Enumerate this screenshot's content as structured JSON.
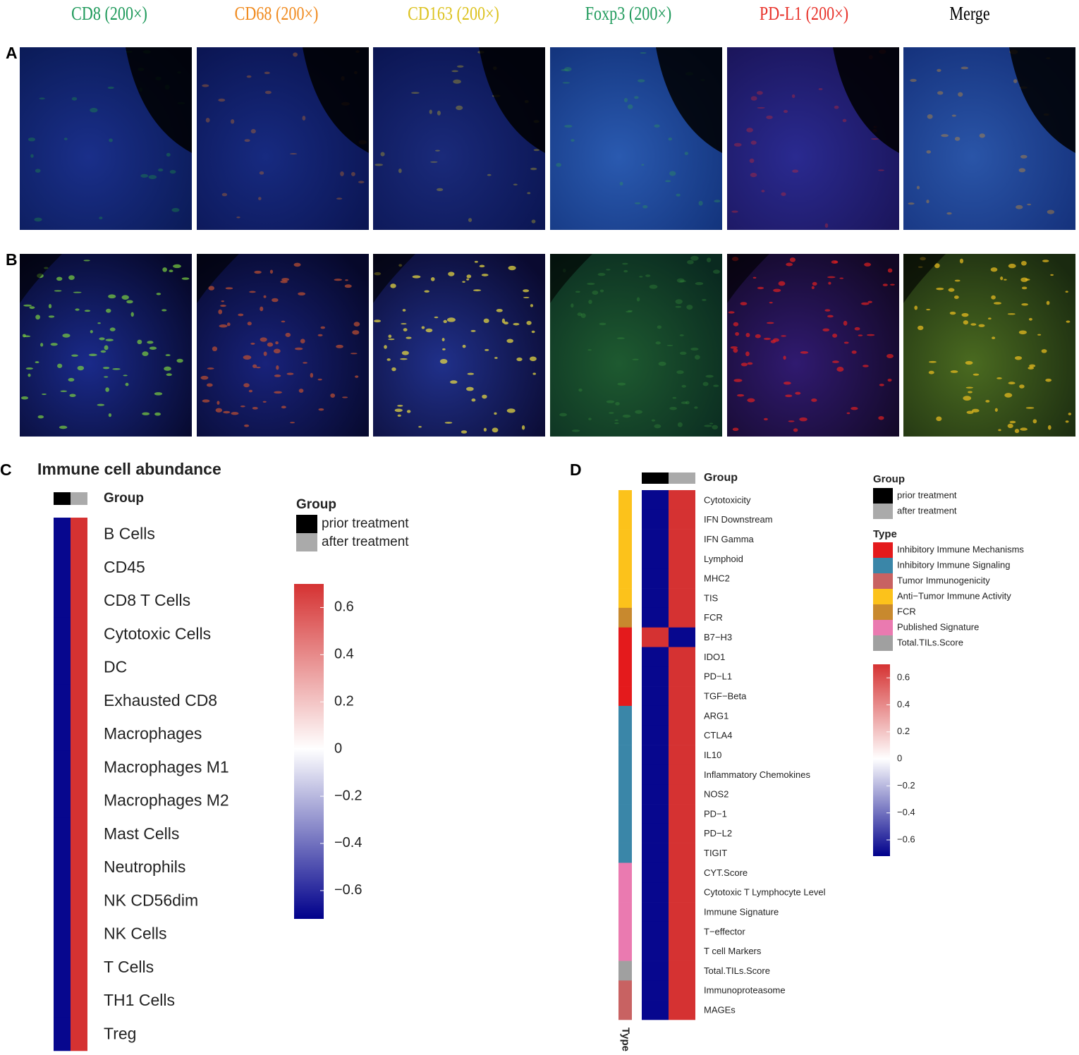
{
  "figure": {
    "columns": [
      {
        "text": "CD8 (200×)",
        "color": "#1f9a5b"
      },
      {
        "text": "CD68 (200×)",
        "color": "#f08a1e"
      },
      {
        "text": "CD163 (200×)",
        "color": "#dcc21e"
      },
      {
        "text": "Foxp3 (200×)",
        "color": "#1f9a5b"
      },
      {
        "text": "PD-L1 (200×)",
        "color": "#e8322a"
      },
      {
        "text": "Merge",
        "color": "#000000"
      }
    ],
    "rows": [
      "A",
      "B"
    ]
  },
  "heatmaps": [
    {
      "label": "C",
      "title": "Immune cell abundance",
      "group_label": "Group",
      "legend": {
        "title": "Group",
        "items": [
          {
            "name": "prior treatment",
            "color": "#000000"
          },
          {
            "name": "after treatment",
            "color": "#aaaaaa"
          }
        ]
      },
      "colorbar": {
        "lim": [
          -0.72,
          0.7
        ],
        "low": "#00008b",
        "mid": "#ffffff",
        "high": "#d42c2c",
        "ticks": [
          0.6,
          0.4,
          0.2,
          0,
          {
            "value": -0.2,
            "label": "−0.2"
          },
          {
            "value": -0.4,
            "label": "−0.4"
          },
          {
            "value": -0.6,
            "label": "−0.6"
          }
        ]
      },
      "rows": [
        {
          "name": "B Cells",
          "values": [
            -0.7,
            0.7
          ]
        },
        {
          "name": "CD45",
          "values": [
            -0.7,
            0.7
          ]
        },
        {
          "name": "CD8 T Cells",
          "values": [
            -0.7,
            0.7
          ]
        },
        {
          "name": "Cytotoxic Cells",
          "values": [
            -0.7,
            0.7
          ]
        },
        {
          "name": "DC",
          "values": [
            -0.7,
            0.7
          ]
        },
        {
          "name": "Exhausted CD8",
          "values": [
            -0.7,
            0.7
          ]
        },
        {
          "name": "Macrophages",
          "values": [
            -0.7,
            0.7
          ]
        },
        {
          "name": "Macrophages M1",
          "values": [
            -0.7,
            0.7
          ]
        },
        {
          "name": "Macrophages M2",
          "values": [
            -0.7,
            0.7
          ]
        },
        {
          "name": "Mast Cells",
          "values": [
            -0.7,
            0.7
          ]
        },
        {
          "name": "Neutrophils",
          "values": [
            -0.7,
            0.7
          ]
        },
        {
          "name": "NK CD56dim",
          "values": [
            -0.7,
            0.7
          ]
        },
        {
          "name": "NK Cells",
          "values": [
            -0.7,
            0.7
          ]
        },
        {
          "name": "T Cells",
          "values": [
            -0.7,
            0.7
          ]
        },
        {
          "name": "TH1 Cells",
          "values": [
            -0.7,
            0.7
          ]
        },
        {
          "name": "Treg",
          "values": [
            -0.7,
            0.7
          ]
        }
      ]
    },
    {
      "label": "D",
      "group_label": "Group",
      "type_label": "Type",
      "legend": {
        "title": "Group",
        "items": [
          {
            "name": "prior treatment",
            "color": "#000000"
          },
          {
            "name": "after treatment",
            "color": "#aaaaaa"
          }
        ]
      },
      "types": {
        "title": "Type",
        "items": [
          {
            "name": "Inhibitory Immune Mechanisms",
            "color": "#e41a1c"
          },
          {
            "name": "Inhibitory Immune Signaling",
            "color": "#3a86a8"
          },
          {
            "name": "Tumor Immunogenicity",
            "color": "#c86262"
          },
          {
            "name": "Anti−Tumor Immune Activity",
            "color": "#fcc21b"
          },
          {
            "name": "FCR",
            "color": "#c8892e"
          },
          {
            "name": "Published Signature",
            "color": "#ea7ab0"
          },
          {
            "name": "Total.TILs.Score",
            "color": "#a0a0a0"
          }
        ]
      },
      "colorbar": {
        "lim": [
          -0.72,
          0.7
        ],
        "low": "#00008b",
        "mid": "#ffffff",
        "high": "#d42c2c",
        "ticks": [
          0.6,
          0.4,
          0.2,
          0,
          {
            "value": -0.2,
            "label": "−0.2"
          },
          {
            "value": -0.4,
            "label": "−0.4"
          },
          {
            "value": -0.6,
            "label": "−0.6"
          }
        ]
      },
      "rows": [
        {
          "name": "Cytotoxicity",
          "type": "Anti−Tumor Immune Activity",
          "values": [
            -0.7,
            0.7
          ]
        },
        {
          "name": "IFN Downstream",
          "type": "Anti−Tumor Immune Activity",
          "values": [
            -0.7,
            0.7
          ]
        },
        {
          "name": "IFN Gamma",
          "type": "Anti−Tumor Immune Activity",
          "values": [
            -0.7,
            0.7
          ]
        },
        {
          "name": "Lymphoid",
          "type": "Anti−Tumor Immune Activity",
          "values": [
            -0.7,
            0.7
          ]
        },
        {
          "name": "MHC2",
          "type": "Anti−Tumor Immune Activity",
          "values": [
            -0.7,
            0.7
          ]
        },
        {
          "name": "TIS",
          "type": "Anti−Tumor Immune Activity",
          "values": [
            -0.7,
            0.7
          ]
        },
        {
          "name": "FCR",
          "type": "FCR",
          "values": [
            -0.7,
            0.7
          ]
        },
        {
          "name": "B7−H3",
          "type": "Inhibitory Immune Mechanisms",
          "values": [
            0.7,
            -0.7
          ]
        },
        {
          "name": "IDO1",
          "type": "Inhibitory Immune Mechanisms",
          "values": [
            -0.7,
            0.7
          ]
        },
        {
          "name": "PD−L1",
          "type": "Inhibitory Immune Mechanisms",
          "values": [
            -0.7,
            0.7
          ]
        },
        {
          "name": "TGF−Beta",
          "type": "Inhibitory Immune Mechanisms",
          "values": [
            -0.7,
            0.7
          ]
        },
        {
          "name": "ARG1",
          "type": "Inhibitory Immune Signaling",
          "values": [
            -0.7,
            0.7
          ]
        },
        {
          "name": "CTLA4",
          "type": "Inhibitory Immune Signaling",
          "values": [
            -0.7,
            0.7
          ]
        },
        {
          "name": "IL10",
          "type": "Inhibitory Immune Signaling",
          "values": [
            -0.7,
            0.7
          ]
        },
        {
          "name": "Inflammatory Chemokines",
          "type": "Inhibitory Immune Signaling",
          "values": [
            -0.7,
            0.7
          ]
        },
        {
          "name": "NOS2",
          "type": "Inhibitory Immune Signaling",
          "values": [
            -0.7,
            0.7
          ]
        },
        {
          "name": "PD−1",
          "type": "Inhibitory Immune Signaling",
          "values": [
            -0.7,
            0.7
          ]
        },
        {
          "name": "PD−L2",
          "type": "Inhibitory Immune Signaling",
          "values": [
            -0.7,
            0.7
          ]
        },
        {
          "name": "TIGIT",
          "type": "Inhibitory Immune Signaling",
          "values": [
            -0.7,
            0.7
          ]
        },
        {
          "name": "CYT.Score",
          "type": "Published Signature",
          "values": [
            -0.7,
            0.7
          ]
        },
        {
          "name": "Cytotoxic T Lymphocyte Level",
          "type": "Published Signature",
          "values": [
            -0.7,
            0.7
          ]
        },
        {
          "name": "Immune Signature",
          "type": "Published Signature",
          "values": [
            -0.7,
            0.7
          ]
        },
        {
          "name": "T−effector",
          "type": "Published Signature",
          "values": [
            -0.7,
            0.7
          ]
        },
        {
          "name": "T cell Markers",
          "type": "Published Signature",
          "values": [
            -0.7,
            0.7
          ]
        },
        {
          "name": "Total.TILs.Score",
          "type": "Total.TILs.Score",
          "values": [
            -0.7,
            0.7
          ]
        },
        {
          "name": "Immunoproteasome",
          "type": "Tumor Immunogenicity",
          "values": [
            -0.7,
            0.7
          ]
        },
        {
          "name": "MAGEs",
          "type": "Tumor Immunogenicity",
          "values": [
            -0.7,
            0.7
          ]
        }
      ]
    }
  ]
}
